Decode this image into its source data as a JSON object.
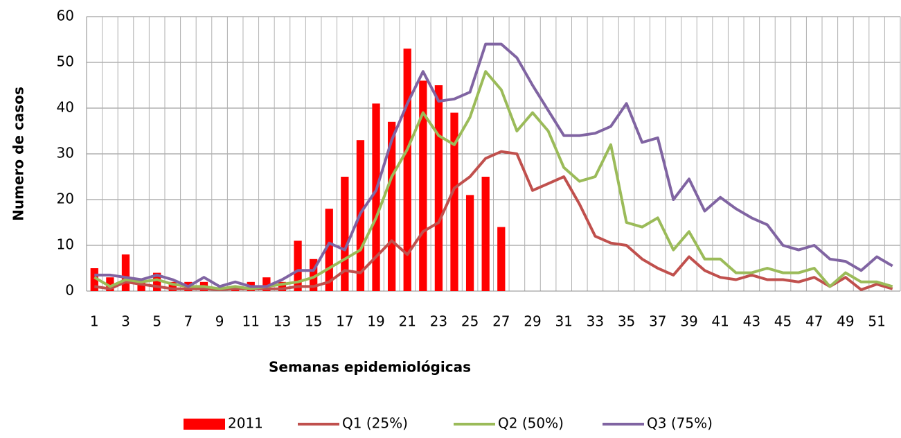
{
  "chart_data": {
    "type": "combo",
    "x_label": "Semanas epidemiológicas",
    "y_label": "Numero de casos",
    "categories": [
      1,
      null,
      3,
      null,
      5,
      null,
      7,
      null,
      9,
      null,
      11,
      null,
      13,
      null,
      15,
      null,
      17,
      null,
      19,
      null,
      21,
      null,
      23,
      null,
      25,
      null,
      27,
      null,
      29,
      null,
      31,
      null,
      33,
      null,
      35,
      null,
      37,
      null,
      39,
      null,
      41,
      null,
      43,
      null,
      45,
      null,
      47,
      null,
      49,
      null,
      51,
      null
    ],
    "series": [
      {
        "name": "2011",
        "type": "bar",
        "color": "#ff0000",
        "values": [
          5,
          3,
          8,
          2,
          4,
          2,
          2,
          2,
          0,
          1,
          2,
          3,
          2,
          11,
          7,
          18,
          25,
          33,
          41,
          37,
          53,
          46,
          45,
          39,
          21,
          25,
          14,
          null,
          null,
          null,
          null,
          null,
          null,
          null,
          null,
          null,
          null,
          null,
          null,
          null,
          null,
          null,
          null,
          null,
          null,
          null,
          null,
          null,
          null,
          null,
          null,
          null
        ]
      },
      {
        "name": "Q1 (25%)",
        "type": "line",
        "color": "#c0504d",
        "values": [
          1,
          0.5,
          2,
          1.5,
          1,
          0.5,
          0.5,
          0.5,
          0.3,
          0.5,
          0.5,
          0.5,
          0.5,
          1,
          1,
          2,
          4.5,
          4,
          7.5,
          11,
          8,
          13,
          15,
          22.5,
          25,
          29,
          30.5,
          30,
          22,
          23.5,
          25,
          19,
          12,
          10.5,
          10,
          7,
          5,
          3.5,
          7.5,
          4.5,
          3,
          2.5,
          3.5,
          2.5,
          2.5,
          2,
          3,
          1,
          3,
          0.3,
          1.5,
          0.5
        ]
      },
      {
        "name": "Q2 (50%)",
        "type": "line",
        "color": "#9bbb59",
        "values": [
          3,
          1,
          2.5,
          2,
          2.5,
          1.5,
          1,
          1,
          0.5,
          1,
          0.5,
          1,
          1.5,
          2,
          3,
          5,
          7,
          9,
          16,
          25,
          31,
          39,
          34,
          32,
          38,
          48,
          44,
          35,
          39,
          35,
          27,
          24,
          25,
          32,
          15,
          14,
          16,
          9,
          13,
          7,
          7,
          4,
          4,
          5,
          4,
          4,
          5,
          1,
          4,
          2,
          2,
          1
        ]
      },
      {
        "name": "Q3 (75%)",
        "type": "line",
        "color": "#8064a2",
        "values": [
          3.5,
          3.5,
          3,
          2.5,
          3.5,
          2.5,
          1,
          3,
          1,
          2,
          1,
          1,
          2.5,
          4.5,
          4.5,
          10.5,
          9,
          17,
          22,
          33,
          41,
          48,
          41.5,
          42,
          43.5,
          54,
          54,
          51,
          45,
          39.5,
          34,
          34,
          34.5,
          36,
          41,
          32.5,
          33.5,
          20,
          24.5,
          17.5,
          20.5,
          18,
          16,
          14.5,
          10,
          9,
          10,
          7,
          6.5,
          4.5,
          7.5,
          5.5
        ]
      }
    ],
    "ylim": [
      0,
      60
    ],
    "yticks": [
      0,
      10,
      20,
      30,
      40,
      50,
      60
    ],
    "grid": true,
    "legend": "bottom"
  }
}
